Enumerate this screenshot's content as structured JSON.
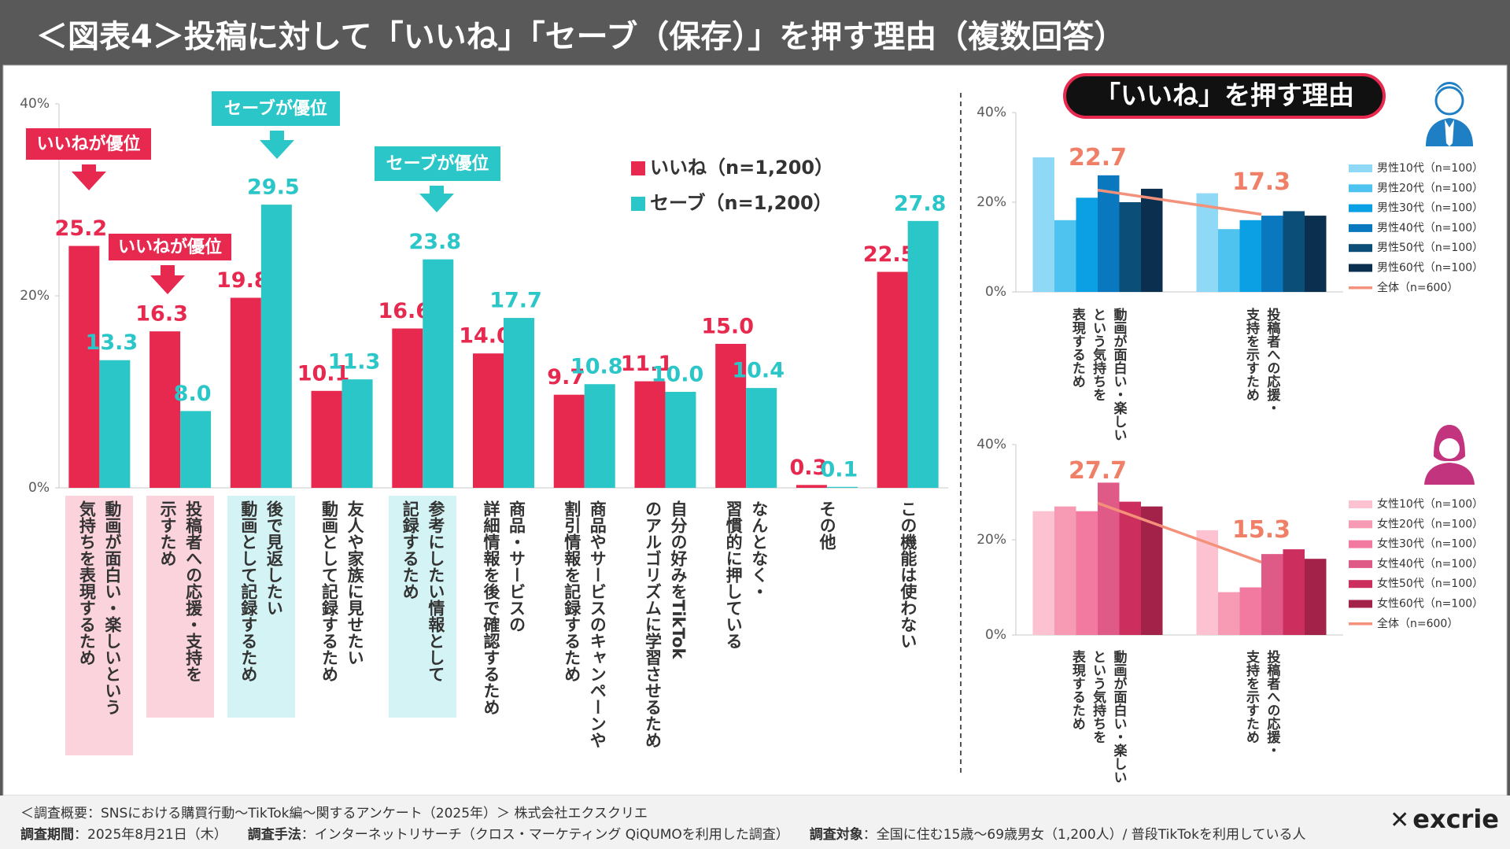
{
  "title": "＜図表4＞投稿に対して「いいね」「セーブ（保存）」を押す理由（複数回答）",
  "chart_data": [
    {
      "type": "bar",
      "categories": [
        "動画が面白い・楽しいという\n気持ちを表現するため",
        "投稿者への応援・支持を\n示すため",
        "後で見返したい\n動画として記録するため",
        "友人や家族に見せたい\n動画として記録するため",
        "参考にしたい情報として\n記録するため",
        "商品・サービスの\n詳細情報を後で確認するため",
        "商品やサービスのキャンペーンや\n割引情報を記録するため",
        "自分の好みをTikTok\nのアルゴリズムに学習させるため",
        "なんとなく・\n習慣的に押している",
        "その他",
        "この機能は使わない"
      ],
      "series": [
        {
          "name": "いいね（n=1,200）",
          "color": "#e8294f",
          "values": [
            25.2,
            16.3,
            19.8,
            10.1,
            16.6,
            14.0,
            9.7,
            11.1,
            15.0,
            0.3,
            22.5
          ],
          "value_labels": [
            "25.2",
            "16.3",
            "19.8",
            "10.1",
            "16.6",
            "14.0",
            "9.7",
            "11.1",
            "15.0",
            "0.3",
            "22.5"
          ]
        },
        {
          "name": "セーブ（n=1,200）",
          "color": "#2bc6c8",
          "values": [
            13.3,
            8.0,
            29.5,
            11.3,
            23.8,
            17.7,
            10.8,
            10.0,
            10.4,
            0.1,
            27.8
          ],
          "value_labels": [
            "13.3",
            "8.0",
            "29.5",
            "11.3",
            "23.8",
            "17.7",
            "10.8",
            "10.0",
            "10.4",
            "0.1",
            "27.8"
          ]
        }
      ],
      "ylim": [
        0,
        40
      ],
      "yticks": [
        {
          "value": 0,
          "label": "0%"
        },
        {
          "value": 20,
          "label": "20%"
        },
        {
          "value": 40,
          "label": "40%"
        }
      ],
      "grid": false,
      "annotations": [
        "いいねが優位",
        "いいねが優位",
        "セーブが優位",
        "セーブが優位"
      ]
    },
    {
      "type": "bar",
      "title": "「いいね」を押す理由",
      "categories": [
        "動画が面白い・楽しい\nという気持ちを\n表現するため",
        "投稿者への応援・\n支持を示すため"
      ],
      "series": [
        {
          "name": "男性10代（n=100）",
          "color": "#8fd8f6",
          "values": [
            30,
            22
          ]
        },
        {
          "name": "男性20代（n=100）",
          "color": "#4fc3f0",
          "values": [
            16,
            14
          ]
        },
        {
          "name": "男性30代（n=100）",
          "color": "#0aa0e3",
          "values": [
            21,
            16
          ]
        },
        {
          "name": "男性40代（n=100）",
          "color": "#0a78be",
          "values": [
            26,
            17
          ]
        },
        {
          "name": "男性50代（n=100）",
          "color": "#0b4e78",
          "values": [
            20,
            18
          ]
        },
        {
          "name": "男性60代（n=100）",
          "color": "#0b2f4e",
          "values": [
            23,
            17
          ]
        },
        {
          "name": "全体（n=600）",
          "color": "#f4917a",
          "type": "line",
          "values": [
            22.7,
            17.3
          ]
        }
      ],
      "ylim": [
        0,
        40
      ],
      "yticks": [
        {
          "value": 0,
          "label": "0%"
        },
        {
          "value": 20,
          "label": "20%"
        },
        {
          "value": 40,
          "label": "40%"
        }
      ],
      "grid": false
    },
    {
      "type": "bar",
      "categories": [
        "動画が面白い・楽しい\nという気持ちを\n表現するため",
        "投稿者への応援・\n支持を示すため"
      ],
      "series": [
        {
          "name": "女性10代（n=100）",
          "color": "#fcc2d2",
          "values": [
            26,
            22
          ]
        },
        {
          "name": "女性20代（n=100）",
          "color": "#f79bb5",
          "values": [
            27,
            9
          ]
        },
        {
          "name": "女性30代（n=100）",
          "color": "#f27aa0",
          "values": [
            26,
            10
          ]
        },
        {
          "name": "女性40代（n=100）",
          "color": "#e05a87",
          "values": [
            32,
            17
          ]
        },
        {
          "name": "女性50代（n=100）",
          "color": "#cc2e5e",
          "values": [
            28,
            18
          ]
        },
        {
          "name": "女性60代（n=100）",
          "color": "#a3224a",
          "values": [
            27,
            16
          ]
        },
        {
          "name": "全体（n=600）",
          "color": "#f4917a",
          "type": "line",
          "values": [
            27.7,
            15.3
          ]
        }
      ],
      "ylim": [
        0,
        40
      ],
      "yticks": [
        {
          "value": 0,
          "label": "0%"
        },
        {
          "value": 20,
          "label": "20%"
        },
        {
          "value": 40,
          "label": "40%"
        }
      ],
      "grid": false
    }
  ],
  "footer": {
    "line1": "＜調査概要：SNSにおける購買行動～TikTok編～関するアンケート（2025年）＞ 株式会社エクスクリエ",
    "line2": [
      {
        "label": "調査期間",
        "text": "：2025年8月21日（木）"
      },
      {
        "label": "調査手法",
        "text": "：インターネットリサーチ（クロス・マーケティング QiQUMOを利用した調査）"
      },
      {
        "label": "調査対象",
        "text": "：全国に住む15歳～69歳男女（1,200人）/ 普段TikTokを利用している人"
      }
    ]
  },
  "logo": "excrie"
}
